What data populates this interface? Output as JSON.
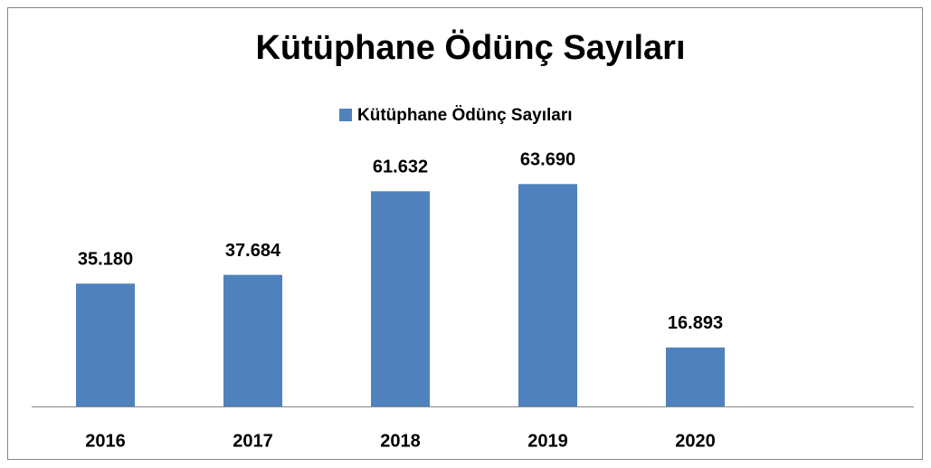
{
  "chart_data": {
    "type": "bar",
    "title": "Kütüphane Ödünç Sayıları",
    "categories": [
      "2016",
      "2017",
      "2018",
      "2019",
      "2020"
    ],
    "series": [
      {
        "name": "Kütüphane Ödünç Sayıları",
        "color": "#4f81bd",
        "values": [
          35180,
          37684,
          61632,
          63690,
          16893
        ],
        "value_labels": [
          "35.180",
          "37.684",
          "61.632",
          "63.690",
          "16.893"
        ]
      }
    ],
    "ylim": [
      0,
      70000
    ],
    "legend": "top"
  }
}
